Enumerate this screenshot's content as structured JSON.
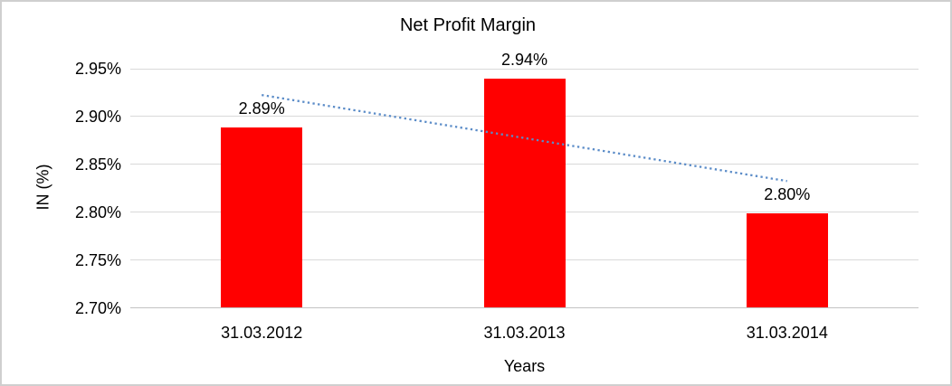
{
  "frame": {
    "border_color": "#cfcfcf",
    "background": "#ffffff"
  },
  "chart_data": {
    "type": "bar",
    "title": "Net Profit Margin",
    "xlabel": "Years",
    "ylabel": "IN (%)",
    "categories": [
      "31.03.2012",
      "31.03.2013",
      "31.03.2014"
    ],
    "values": [
      2.888,
      2.939,
      2.798
    ],
    "data_labels": [
      "2.89%",
      "2.94%",
      "2.80%"
    ],
    "bar_color": "#ff0000",
    "ylim": [
      2.7,
      2.95
    ],
    "ytick_step": 0.05,
    "ytick_labels": [
      "2.70%",
      "2.75%",
      "2.80%",
      "2.85%",
      "2.90%",
      "2.95%"
    ],
    "grid": true,
    "gridline_color": "#d9d9d9",
    "axis_line_color": "#c3c3c3",
    "legend": "none",
    "trendline": {
      "type": "linear",
      "style": "dotted",
      "color": "#5b8cc8",
      "start_value": 2.922,
      "end_value": 2.832
    }
  }
}
